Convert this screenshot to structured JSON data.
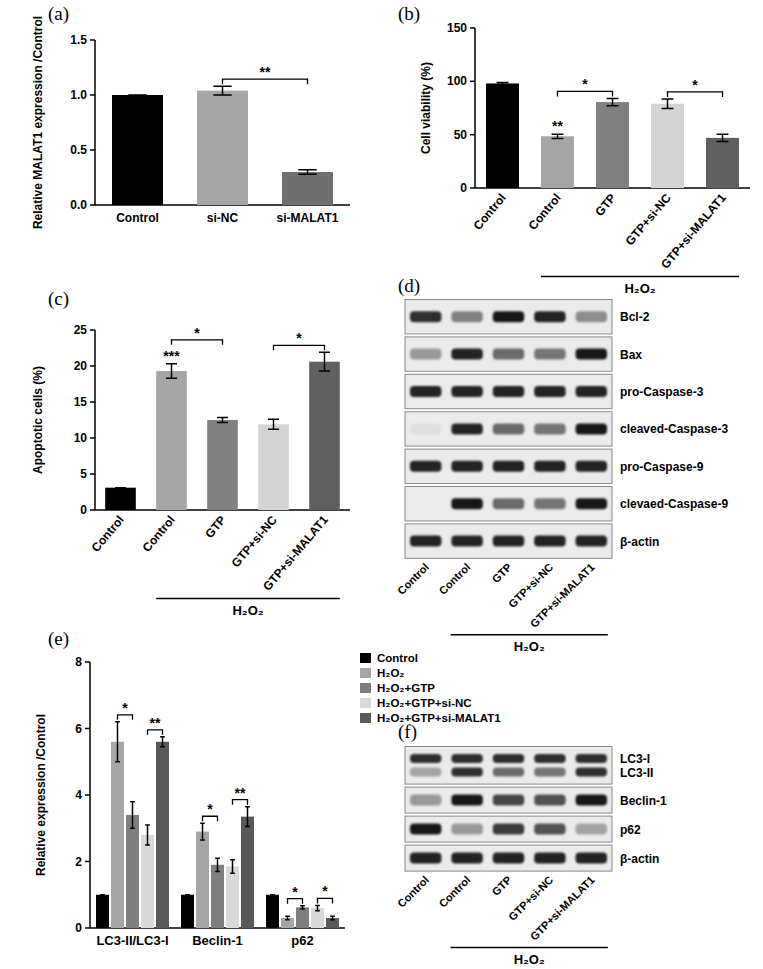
{
  "chart_data": [
    {
      "type": "bar",
      "panel_label": "(a)",
      "y_label": "Relative MALAT1 expression /Control",
      "categories": [
        "Control",
        "si-NC",
        "si-MALAT1"
      ],
      "values": [
        1.0,
        1.04,
        0.3
      ],
      "errors": [
        0,
        0.04,
        0.02
      ],
      "colors": [
        "#000000",
        "#a6a6a6",
        "#707070"
      ],
      "ylim": [
        0,
        1.5
      ],
      "yticks": [
        {
          "value": 0,
          "label": "0.0"
        },
        {
          "value": 0.5,
          "label": "0.5"
        },
        {
          "value": 1,
          "label": "1.0"
        },
        {
          "value": 1.5,
          "label": "1.5"
        }
      ],
      "annotations": [
        {
          "text": "**",
          "between": [
            1,
            2
          ]
        }
      ]
    },
    {
      "type": "bar",
      "panel_label": "(b)",
      "y_label": "Cell viability (%)",
      "categories": [
        "Control",
        "Control",
        "GTP",
        "GTP+si-NC",
        "GTP+si-MALAT1"
      ],
      "values": [
        98,
        48.5,
        80.5,
        79,
        47
      ],
      "errors": [
        1,
        2,
        3.5,
        4.5,
        3.5
      ],
      "colors": [
        "#000000",
        "#a6a6a6",
        "#808080",
        "#d4d4d4",
        "#606060"
      ],
      "ylim": [
        0,
        150
      ],
      "yticks": [
        0,
        50,
        100,
        150
      ],
      "annotations": [
        {
          "text": "**",
          "at": 1
        },
        {
          "text": "*",
          "between": [
            1,
            2
          ]
        },
        {
          "text": "*",
          "between": [
            3,
            4
          ]
        },
        {
          "text": "H₂O₂",
          "span": [
            1,
            4
          ]
        }
      ]
    },
    {
      "type": "bar",
      "panel_label": "(c)",
      "y_label": "Apoptotic cells (%)",
      "categories": [
        "Control",
        "Control",
        "GTP",
        "GTP+si-NC",
        "GTP+si-MALAT1"
      ],
      "values": [
        3.1,
        19.3,
        12.5,
        11.9,
        20.6
      ],
      "errors": [
        0,
        1,
        0.35,
        0.7,
        1.3
      ],
      "colors": [
        "#000000",
        "#a6a6a6",
        "#808080",
        "#d4d4d4",
        "#606060"
      ],
      "ylim": [
        0,
        25
      ],
      "yticks": [
        0,
        5,
        10,
        15,
        20,
        25
      ],
      "annotations": [
        {
          "text": "***",
          "at": 1
        },
        {
          "text": "*",
          "between": [
            1,
            2
          ]
        },
        {
          "text": "*",
          "between": [
            3,
            4
          ]
        },
        {
          "text": "H₂O₂",
          "span": [
            1,
            4
          ]
        }
      ]
    },
    {
      "type": "bar",
      "panel_label": "(e)",
      "y_label": "Relative expression /Control",
      "categories": [
        "LC3-II/LC3-I",
        "Beclin-1",
        "p62"
      ],
      "series": [
        {
          "name": "Control",
          "color": "#000000",
          "values": [
            1,
            1,
            1
          ],
          "errors": [
            0,
            0,
            0
          ]
        },
        {
          "name": "H₂O₂",
          "color": "#a6a6a6",
          "values": [
            5.6,
            2.9,
            0.3
          ],
          "errors": [
            0.6,
            0.25,
            0.05
          ]
        },
        {
          "name": "H₂O₂+GTP",
          "color": "#7f7f7f",
          "values": [
            3.4,
            1.9,
            0.62
          ],
          "errors": [
            0.4,
            0.2,
            0.05
          ]
        },
        {
          "name": "H₂O₂+GTP+si-NC",
          "color": "#d9d9d9",
          "values": [
            2.8,
            1.85,
            0.6
          ],
          "errors": [
            0.3,
            0.2,
            0.08
          ]
        },
        {
          "name": "H₂O₂+GTP+si-MALAT1",
          "color": "#595959",
          "values": [
            5.6,
            3.35,
            0.3
          ],
          "errors": [
            0.15,
            0.3,
            0.05
          ]
        }
      ],
      "ylim": [
        0,
        8
      ],
      "yticks": [
        0,
        2,
        4,
        6,
        8
      ],
      "legend": "right",
      "annotations": [
        {
          "text": "*",
          "group": 0,
          "between": [
            1,
            2
          ]
        },
        {
          "text": "**",
          "group": 0,
          "between": [
            3,
            4
          ]
        },
        {
          "text": "*",
          "group": 1,
          "between": [
            1,
            2
          ]
        },
        {
          "text": "**",
          "group": 1,
          "between": [
            3,
            4
          ]
        },
        {
          "text": "*",
          "group": 2,
          "between": [
            1,
            2
          ]
        },
        {
          "text": "*",
          "group": 2,
          "between": [
            3,
            4
          ]
        }
      ]
    }
  ],
  "blots": [
    {
      "type": "western_blot",
      "panel_label": "(d)",
      "lanes": [
        "Control",
        "Control",
        "GTP",
        "GTP+si-NC",
        "GTP+si-MALAT1"
      ],
      "rows": [
        {
          "labels": [
            "Bcl-2"
          ],
          "intensity": [
            [
              0.8,
              0.45,
              0.9,
              0.85,
              0.4
            ]
          ]
        },
        {
          "labels": [
            "Bax"
          ],
          "intensity": [
            [
              0.35,
              0.85,
              0.55,
              0.5,
              0.9
            ]
          ]
        },
        {
          "labels": [
            "pro-Caspase-3"
          ],
          "intensity": [
            [
              0.85,
              0.85,
              0.85,
              0.85,
              0.85
            ]
          ]
        },
        {
          "labels": [
            "cleaved-Caspase-3"
          ],
          "intensity": [
            [
              0.05,
              0.85,
              0.55,
              0.5,
              0.9
            ]
          ]
        },
        {
          "labels": [
            "pro-Caspase-9"
          ],
          "intensity": [
            [
              0.85,
              0.85,
              0.85,
              0.85,
              0.85
            ]
          ]
        },
        {
          "labels": [
            "clevaed-Caspase-9"
          ],
          "intensity": [
            [
              0.0,
              0.9,
              0.55,
              0.5,
              0.9
            ]
          ]
        },
        {
          "labels": [
            "β-actin"
          ],
          "intensity": [
            [
              0.85,
              0.85,
              0.85,
              0.85,
              0.85
            ]
          ]
        }
      ],
      "annotations": [
        {
          "text": "H₂O₂",
          "span": [
            1,
            4
          ]
        }
      ]
    },
    {
      "type": "western_blot",
      "panel_label": "(f)",
      "lanes": [
        "Control",
        "Control",
        "GTP",
        "GTP+si-NC",
        "GTP+si-MALAT1"
      ],
      "rows": [
        {
          "labels": [
            "LC3-I",
            "LC3-II"
          ],
          "intensity": [
            [
              0.8,
              0.8,
              0.8,
              0.8,
              0.8
            ],
            [
              0.3,
              0.8,
              0.55,
              0.5,
              0.8
            ]
          ]
        },
        {
          "labels": [
            "Beclin-1"
          ],
          "intensity": [
            [
              0.35,
              0.9,
              0.7,
              0.65,
              0.9
            ]
          ]
        },
        {
          "labels": [
            "p62"
          ],
          "intensity": [
            [
              0.9,
              0.35,
              0.75,
              0.65,
              0.3
            ]
          ]
        },
        {
          "labels": [
            "β-actin"
          ],
          "intensity": [
            [
              0.85,
              0.85,
              0.85,
              0.85,
              0.85
            ]
          ]
        }
      ],
      "annotations": [
        {
          "text": "H₂O₂",
          "span": [
            1,
            4
          ]
        }
      ]
    }
  ]
}
